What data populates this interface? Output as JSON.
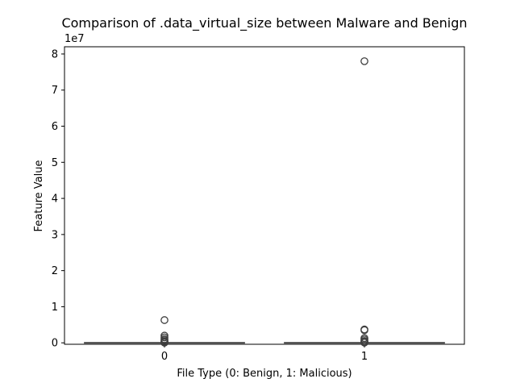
{
  "chart_data": {
    "type": "box",
    "title": "Comparison of .data_virtual_size between Malware and Benign",
    "xlabel": "File Type (0: Benign, 1: Malicious)",
    "ylabel": "Feature Value",
    "y_offset_label": "1e7",
    "y_scale": 10000000,
    "ylim": [
      -400000,
      82000000
    ],
    "yticks": [
      0,
      10000000,
      20000000,
      30000000,
      40000000,
      50000000,
      60000000,
      70000000,
      80000000
    ],
    "ytick_labels": [
      "0",
      "1",
      "2",
      "3",
      "4",
      "5",
      "6",
      "7",
      "8"
    ],
    "categories": [
      "0",
      "1"
    ],
    "boxes": [
      {
        "category": "0",
        "whislo": 0,
        "q1": 0,
        "med": 0,
        "q3": 0,
        "whishi": 0,
        "fliers": [
          6300000,
          2000000,
          1500000,
          1000000,
          700000,
          400000,
          200000,
          100000,
          50000
        ]
      },
      {
        "category": "1",
        "whislo": 0,
        "q1": 0,
        "med": 0,
        "q3": 0,
        "whishi": 0,
        "fliers": [
          78000000,
          3700000,
          3500000,
          1300000,
          900000,
          500000,
          300000,
          150000,
          50000
        ]
      }
    ],
    "colors": {
      "box_fill": "#ffffff",
      "box_edge": "#3f3f3f",
      "flier_edge": "#3f3f3f",
      "axis": "#000000"
    },
    "grid": false,
    "legend": "none"
  }
}
